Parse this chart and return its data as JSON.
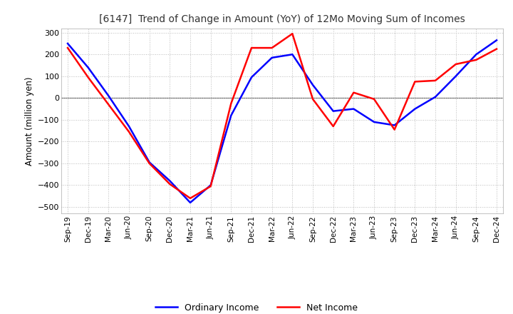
{
  "title": "[6147]  Trend of Change in Amount (YoY) of 12Mo Moving Sum of Incomes",
  "ylabel": "Amount (million yen)",
  "legend": [
    "Ordinary Income",
    "Net Income"
  ],
  "line_colors": [
    "blue",
    "red"
  ],
  "x_labels": [
    "Sep-19",
    "Dec-19",
    "Mar-20",
    "Jun-20",
    "Sep-20",
    "Dec-20",
    "Mar-21",
    "Jun-21",
    "Sep-21",
    "Dec-21",
    "Mar-22",
    "Jun-22",
    "Sep-22",
    "Dec-22",
    "Mar-23",
    "Jun-23",
    "Sep-23",
    "Dec-23",
    "Mar-24",
    "Jun-24",
    "Sep-24",
    "Dec-24"
  ],
  "ordinary_income": [
    250,
    140,
    10,
    -130,
    -295,
    -380,
    -480,
    -400,
    -80,
    95,
    185,
    200,
    60,
    -60,
    -50,
    -110,
    -125,
    -50,
    5,
    100,
    200,
    265
  ],
  "net_income": [
    230,
    95,
    -30,
    -155,
    -300,
    -395,
    -460,
    -405,
    -25,
    230,
    230,
    295,
    -5,
    -130,
    25,
    -5,
    -145,
    75,
    80,
    155,
    175,
    225
  ],
  "ylim": [
    -530,
    320
  ],
  "yticks": [
    300,
    200,
    100,
    0,
    -100,
    -200,
    -300,
    -400,
    -500
  ],
  "background_color": "#ffffff",
  "grid_color": "#bbbbbb"
}
